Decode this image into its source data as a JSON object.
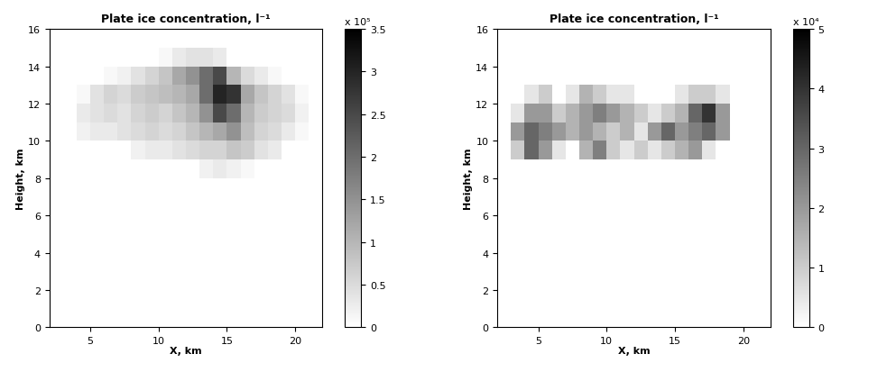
{
  "chart_data": [
    {
      "type": "heatmap",
      "title": "Plate ice concentration, l⁻¹",
      "x_label": "X, km",
      "y_label": "Height, km",
      "xlim": [
        2,
        22
      ],
      "xticks": [
        5,
        10,
        15,
        20
      ],
      "ylim": [
        0,
        16
      ],
      "yticks": [
        0,
        2,
        4,
        6,
        8,
        10,
        12,
        14,
        16
      ],
      "x_edges": [
        4,
        5,
        6,
        7,
        8,
        9,
        10,
        11,
        12,
        13,
        14,
        15,
        16,
        17,
        18,
        19,
        20,
        21
      ],
      "y_edges": [
        8,
        9,
        10,
        11,
        12,
        13,
        14,
        15
      ],
      "cells": [
        [
          0,
          0,
          0,
          0,
          0,
          0,
          0,
          0,
          0,
          20000,
          30000,
          20000,
          10000,
          0,
          0,
          0,
          0
        ],
        [
          0,
          0,
          0,
          0,
          20000,
          30000,
          30000,
          40000,
          50000,
          60000,
          60000,
          80000,
          70000,
          40000,
          30000,
          0,
          0
        ],
        [
          20000,
          30000,
          30000,
          40000,
          50000,
          60000,
          50000,
          60000,
          80000,
          100000,
          120000,
          150000,
          90000,
          60000,
          50000,
          30000,
          10000
        ],
        [
          30000,
          40000,
          50000,
          40000,
          60000,
          70000,
          60000,
          80000,
          100000,
          150000,
          250000,
          200000,
          100000,
          70000,
          60000,
          50000,
          20000
        ],
        [
          10000,
          40000,
          60000,
          50000,
          70000,
          80000,
          90000,
          100000,
          120000,
          200000,
          300000,
          280000,
          120000,
          80000,
          60000,
          40000,
          10000
        ],
        [
          0,
          0,
          10000,
          20000,
          40000,
          60000,
          80000,
          120000,
          150000,
          200000,
          250000,
          100000,
          50000,
          30000,
          10000,
          0,
          0
        ],
        [
          0,
          0,
          0,
          0,
          0,
          0,
          10000,
          30000,
          40000,
          40000,
          30000,
          0,
          0,
          0,
          0,
          0,
          0
        ]
      ],
      "colorbar_range": [
        0,
        350000
      ],
      "colorbar_ticks": [
        {
          "value": 0,
          "label": "0"
        },
        {
          "value": 50000,
          "label": "0.5"
        },
        {
          "value": 100000,
          "label": "1"
        },
        {
          "value": 150000,
          "label": "1.5"
        },
        {
          "value": 200000,
          "label": "2"
        },
        {
          "value": 250000,
          "label": "2.5"
        },
        {
          "value": 300000,
          "label": "3"
        },
        {
          "value": 350000,
          "label": "3.5"
        }
      ],
      "colorbar_multiplier": "x 10⁵"
    },
    {
      "type": "heatmap",
      "title": "Plate ice concentration, l⁻¹",
      "x_label": "X, km",
      "y_label": "Height, km",
      "xlim": [
        2,
        22
      ],
      "xticks": [
        5,
        10,
        15,
        20
      ],
      "ylim": [
        0,
        16
      ],
      "yticks": [
        0,
        2,
        4,
        6,
        8,
        10,
        12,
        14,
        16
      ],
      "x_edges": [
        3,
        4,
        5,
        6,
        7,
        8,
        9,
        10,
        11,
        12,
        13,
        14,
        15,
        16,
        17,
        18,
        19,
        20
      ],
      "y_edges": [
        9,
        10,
        11,
        12,
        13
      ],
      "cells": [
        [
          10000,
          30000,
          20000,
          5000,
          0,
          15000,
          25000,
          10000,
          5000,
          10000,
          5000,
          10000,
          15000,
          20000,
          5000,
          0,
          0
        ],
        [
          20000,
          30000,
          25000,
          20000,
          15000,
          20000,
          15000,
          10000,
          15000,
          5000,
          20000,
          30000,
          20000,
          25000,
          30000,
          20000,
          0
        ],
        [
          5000,
          20000,
          20000,
          10000,
          15000,
          20000,
          25000,
          20000,
          15000,
          10000,
          5000,
          10000,
          15000,
          30000,
          40000,
          20000,
          0
        ],
        [
          0,
          5000,
          10000,
          0,
          5000,
          15000,
          10000,
          5000,
          5000,
          0,
          0,
          0,
          5000,
          10000,
          10000,
          5000,
          0
        ]
      ],
      "colorbar_range": [
        0,
        50000
      ],
      "colorbar_ticks": [
        {
          "value": 0,
          "label": "0"
        },
        {
          "value": 10000,
          "label": "1"
        },
        {
          "value": 20000,
          "label": "2"
        },
        {
          "value": 30000,
          "label": "3"
        },
        {
          "value": 40000,
          "label": "4"
        },
        {
          "value": 50000,
          "label": "5"
        }
      ],
      "colorbar_multiplier": "x 10⁴"
    }
  ]
}
